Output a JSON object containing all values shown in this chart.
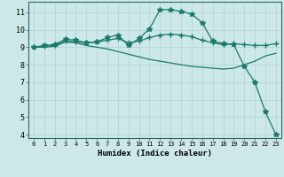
{
  "xlabel": "Humidex (Indice chaleur)",
  "background_color": "#cce8e8",
  "grid_color": "#b8d4d4",
  "line_color": "#1a7a6a",
  "xlim": [
    -0.5,
    23.5
  ],
  "ylim": [
    3.8,
    11.6
  ],
  "yticks": [
    4,
    5,
    6,
    7,
    8,
    9,
    10,
    11
  ],
  "xticks": [
    0,
    1,
    2,
    3,
    4,
    5,
    6,
    7,
    8,
    9,
    10,
    11,
    12,
    13,
    14,
    15,
    16,
    17,
    18,
    19,
    20,
    21,
    22,
    23
  ],
  "series": [
    {
      "x": [
        0,
        1,
        2,
        3,
        4,
        5,
        6,
        7,
        8,
        9,
        10,
        11,
        12,
        13,
        14,
        15,
        16,
        17,
        18,
        19,
        20,
        21,
        22,
        23
      ],
      "y": [
        9.0,
        9.1,
        9.15,
        9.45,
        9.4,
        9.25,
        9.3,
        9.55,
        9.7,
        9.1,
        9.5,
        10.05,
        11.15,
        11.15,
        11.05,
        10.9,
        10.4,
        9.35,
        9.2,
        9.15,
        7.9,
        7.0,
        5.3,
        4.0
      ],
      "marker": "*",
      "markersize": 4,
      "linestyle": "-",
      "linewidth": 0.9
    },
    {
      "x": [
        0,
        1,
        2,
        3,
        4,
        5,
        6,
        7,
        8,
        9,
        10,
        11,
        12,
        13,
        14,
        15,
        16,
        17,
        18,
        19,
        20,
        21,
        22,
        23
      ],
      "y": [
        9.0,
        9.05,
        9.1,
        9.35,
        9.3,
        9.25,
        9.3,
        9.4,
        9.5,
        9.25,
        9.35,
        9.55,
        9.7,
        9.75,
        9.7,
        9.6,
        9.4,
        9.25,
        9.15,
        9.2,
        9.15,
        9.1,
        9.1,
        9.2
      ],
      "marker": "+",
      "markersize": 4,
      "linestyle": "-",
      "linewidth": 0.9
    },
    {
      "x": [
        0,
        1,
        2,
        3,
        4,
        5,
        6,
        7,
        8,
        9,
        10,
        11,
        12,
        13,
        14,
        15,
        16,
        17,
        18,
        19,
        20,
        21,
        22,
        23
      ],
      "y": [
        9.0,
        9.0,
        9.05,
        9.3,
        9.25,
        9.1,
        9.0,
        8.9,
        8.75,
        8.6,
        8.45,
        8.3,
        8.2,
        8.1,
        8.0,
        7.9,
        7.85,
        7.8,
        7.75,
        7.8,
        8.0,
        8.2,
        8.5,
        8.65
      ],
      "marker": null,
      "markersize": 0,
      "linestyle": "-",
      "linewidth": 0.9
    }
  ]
}
